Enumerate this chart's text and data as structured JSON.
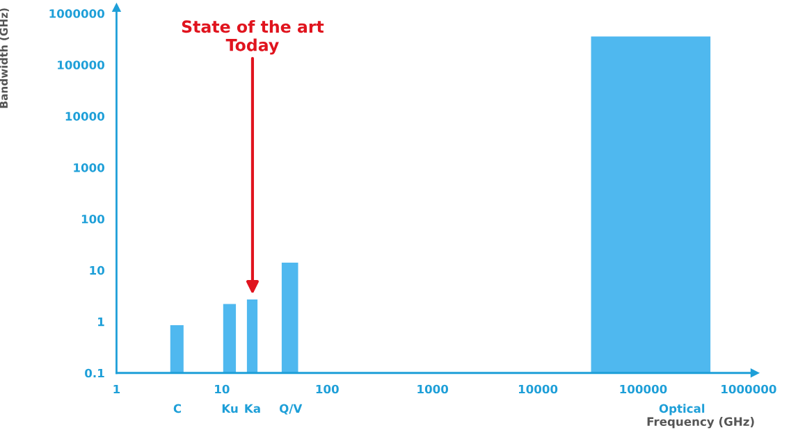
{
  "chart_data": {
    "type": "histogram",
    "xlabel": "Frequency (GHz)",
    "ylabel": "Bandwidth (GHz)",
    "log": "xy",
    "bins": [
      3.24,
      4.33,
      10.3,
      13.6,
      17.3,
      21.8,
      37,
      53,
      32000,
      435000
    ],
    "values": [
      0.85,
      null,
      2.2,
      null,
      2.7,
      null,
      14,
      null,
      355000
    ],
    "color": "#4fb8ef",
    "xlim": [
      1,
      1150000
    ],
    "xticks": [
      1,
      10,
      100,
      1000,
      10000,
      100000,
      1000000
    ],
    "ylim": [
      0.1,
      1300000
    ],
    "yticks": [
      0.1,
      1,
      10,
      100,
      1000,
      10000,
      100000,
      1000000
    ],
    "annotations": [
      "State of the art\nToday",
      "C",
      "Ku",
      "Ka",
      "Q/V",
      "Optical"
    ]
  }
}
